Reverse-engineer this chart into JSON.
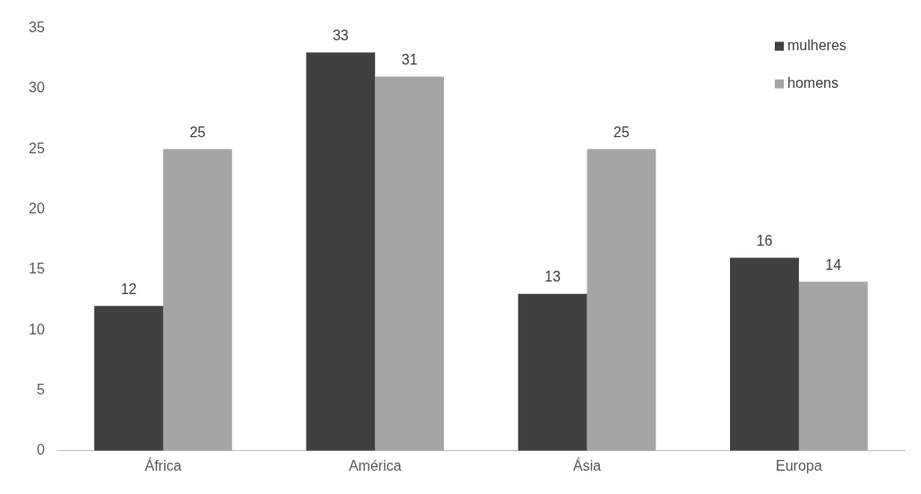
{
  "chart_data": {
    "type": "bar",
    "categories": [
      "África",
      "América",
      "Ásia",
      "Europa"
    ],
    "series": [
      {
        "name": "mulheres",
        "color": "#404040",
        "values": [
          12,
          33,
          13,
          16
        ]
      },
      {
        "name": "homens",
        "color": "#a5a5a5",
        "values": [
          25,
          31,
          25,
          14
        ]
      }
    ],
    "ylim": [
      0,
      35
    ],
    "yticks": [
      0,
      5,
      10,
      15,
      20,
      25,
      30,
      35
    ],
    "grid": false,
    "legend": "top right",
    "data_labels": true
  }
}
